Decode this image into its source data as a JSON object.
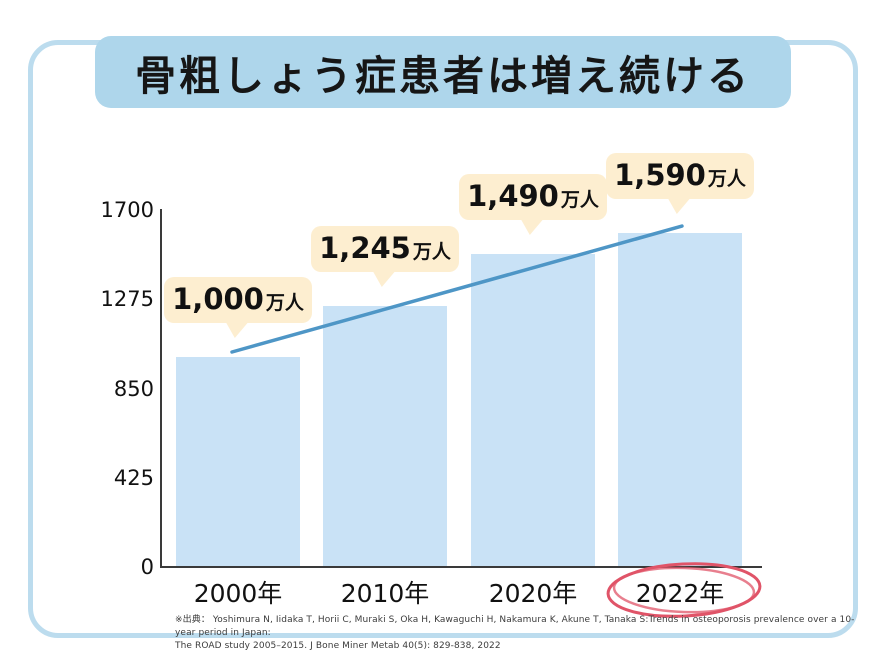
{
  "page": {
    "title": "骨粗しょう症患者は増え続ける"
  },
  "chart_data": {
    "type": "bar",
    "title": "骨粗しょう症患者は増え続ける",
    "categories": [
      "2000年",
      "2010年",
      "2020年",
      "2022年"
    ],
    "values": [
      1000,
      1245,
      1490,
      1590
    ],
    "value_labels": [
      "1,000",
      "1,245",
      "1,490",
      "1,590"
    ],
    "unit": "万人",
    "data_labels": [
      "1,000万人",
      "1,245万人",
      "1,490万人",
      "1,590万人"
    ],
    "yticks": [
      "0",
      "425",
      "850",
      "1275",
      "1700"
    ],
    "ylim": [
      0,
      1700
    ],
    "xlabel": "",
    "ylabel": "",
    "grid": false,
    "legend": false,
    "trend_line": {
      "from_category": "2000年",
      "to_category": "2022年"
    },
    "highlighted_category": "2022年",
    "colors": {
      "bar": "#c9e2f6",
      "callout_bg": "#fdeed0",
      "trend_line": "#4e96c6",
      "highlight_circle": "#e05468",
      "title_bg": "#aed6eb",
      "frame_border": "#bcdcee",
      "axis": "#3a3a3a"
    }
  },
  "footer": {
    "citation_line1": "※出典： Yoshimura N, Iidaka T, Horii C, Muraki S, Oka H, Kawaguchi H, Nakamura K, Akune T, Tanaka S:Trends in osteoporosis prevalence over a 10-year period in Japan:",
    "citation_line2": "The ROAD study 2005–2015. J Bone Miner Metab 40(5): 829-838, 2022"
  }
}
